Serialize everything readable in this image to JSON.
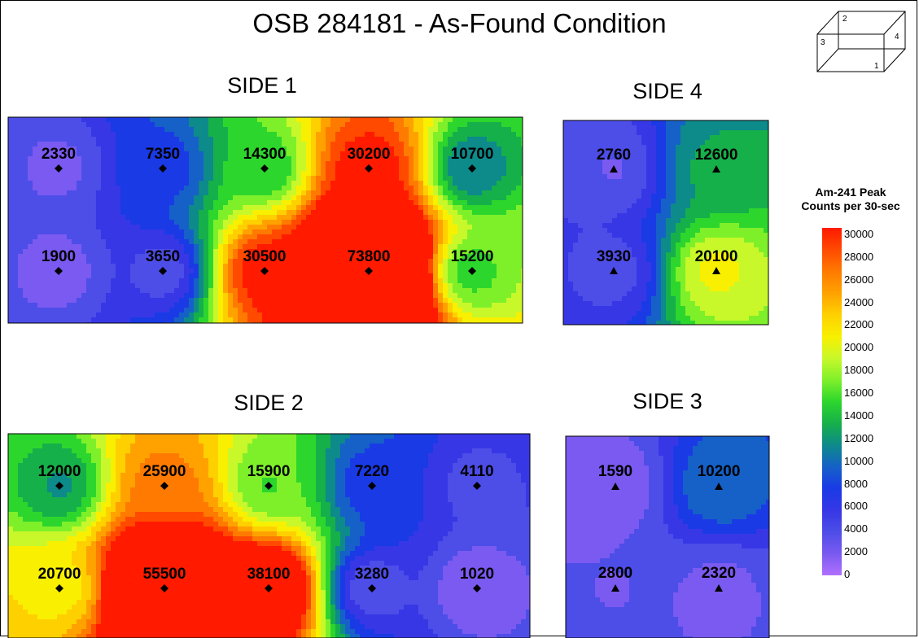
{
  "title": "OSB 284181 - As-Found Condition",
  "legend": {
    "title_line1": "Am-241 Peak",
    "title_line2": "Counts per 30-sec",
    "ticks": [
      "30000",
      "28000",
      "26000",
      "24000",
      "22000",
      "20000",
      "18000",
      "16000",
      "14000",
      "12000",
      "10000",
      "8000",
      "6000",
      "4000",
      "2000",
      "0"
    ],
    "min": 0,
    "max": 30000,
    "colors": [
      "#b070ff",
      "#7a5af0",
      "#4d4de8",
      "#3737e6",
      "#1a3ae6",
      "#1561c8",
      "#0d8a8a",
      "#16b04a",
      "#2dd62d",
      "#7ef02a",
      "#c8f82a",
      "#f8f000",
      "#ffd000",
      "#ffa200",
      "#ff7a00",
      "#ff4a00",
      "#ff1a00"
    ]
  },
  "cube_icon": {
    "face_labels": [
      "1",
      "2",
      "3",
      "4"
    ]
  },
  "chart_data": [
    {
      "type": "heatmap",
      "title": "SIDE 1",
      "marker": "diamond",
      "points": [
        {
          "col": 0,
          "row": 0,
          "value": 2330
        },
        {
          "col": 1,
          "row": 0,
          "value": 7350
        },
        {
          "col": 2,
          "row": 0,
          "value": 14300
        },
        {
          "col": 3,
          "row": 0,
          "value": 30200
        },
        {
          "col": 4,
          "row": 0,
          "value": 10700
        },
        {
          "col": 0,
          "row": 1,
          "value": 1900
        },
        {
          "col": 1,
          "row": 1,
          "value": 3650
        },
        {
          "col": 2,
          "row": 1,
          "value": 30500
        },
        {
          "col": 3,
          "row": 1,
          "value": 73800
        },
        {
          "col": 4,
          "row": 1,
          "value": 15200
        }
      ],
      "labels": [
        "2330",
        "7350",
        "14300",
        "30200",
        "10700",
        "1900",
        "3650",
        "30500",
        "73800",
        "15200"
      ]
    },
    {
      "type": "heatmap",
      "title": "SIDE 4",
      "marker": "triangle",
      "points": [
        {
          "col": 0,
          "row": 0,
          "value": 2760
        },
        {
          "col": 1,
          "row": 0,
          "value": 12600
        },
        {
          "col": 0,
          "row": 1,
          "value": 3930
        },
        {
          "col": 1,
          "row": 1,
          "value": 20100
        }
      ],
      "labels": [
        "2760",
        "12600",
        "3930",
        "20100"
      ]
    },
    {
      "type": "heatmap",
      "title": "SIDE 2",
      "marker": "diamond",
      "points": [
        {
          "col": 0,
          "row": 0,
          "value": 12000
        },
        {
          "col": 1,
          "row": 0,
          "value": 25900
        },
        {
          "col": 2,
          "row": 0,
          "value": 15900
        },
        {
          "col": 3,
          "row": 0,
          "value": 7220
        },
        {
          "col": 4,
          "row": 0,
          "value": 4110
        },
        {
          "col": 0,
          "row": 1,
          "value": 20700
        },
        {
          "col": 1,
          "row": 1,
          "value": 55500
        },
        {
          "col": 2,
          "row": 1,
          "value": 38100
        },
        {
          "col": 3,
          "row": 1,
          "value": 3280
        },
        {
          "col": 4,
          "row": 1,
          "value": 1020
        }
      ],
      "labels": [
        "12000",
        "25900",
        "15900",
        "7220",
        "4110",
        "20700",
        "55500",
        "38100",
        "3280",
        "1020"
      ]
    },
    {
      "type": "heatmap",
      "title": "SIDE 3",
      "marker": "triangle",
      "points": [
        {
          "col": 0,
          "row": 0,
          "value": 1590
        },
        {
          "col": 1,
          "row": 0,
          "value": 10200
        },
        {
          "col": 0,
          "row": 1,
          "value": 2800
        },
        {
          "col": 1,
          "row": 1,
          "value": 2320
        }
      ],
      "labels": [
        "1590",
        "10200",
        "2800",
        "2320"
      ]
    }
  ]
}
